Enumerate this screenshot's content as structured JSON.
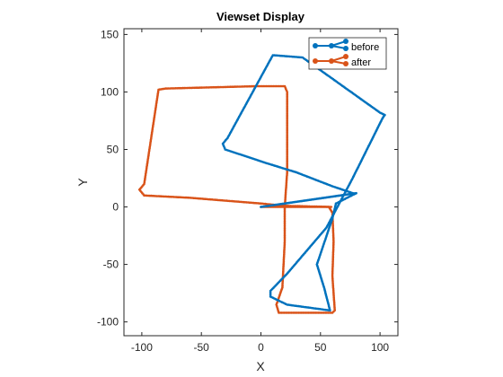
{
  "chart_data": {
    "type": "line",
    "title": "Viewset Display",
    "xlabel": "X",
    "ylabel": "Y",
    "xlim": [
      -115,
      115
    ],
    "ylim": [
      -112,
      155
    ],
    "xticks": [
      -100,
      -50,
      0,
      50,
      100
    ],
    "yticks": [
      -100,
      -50,
      0,
      50,
      100,
      150
    ],
    "grid": false,
    "legend_position": "top-right",
    "colors": {
      "before": "#0072BD",
      "after": "#D95319",
      "link": "#7FB2DE"
    },
    "series": [
      {
        "name": "before",
        "x": [
          0,
          60,
          80,
          63,
          60,
          47,
          53,
          58,
          22,
          8,
          8,
          22,
          55,
          77,
          102,
          104,
          100,
          35,
          10,
          -28,
          -32,
          -30,
          5,
          30,
          60,
          80
        ],
        "y": [
          0,
          9,
          12,
          3,
          -10,
          -50,
          -70,
          -90,
          -85,
          -78,
          -73,
          -58,
          -18,
          25,
          77,
          80,
          82,
          130,
          132,
          60,
          55,
          50,
          38,
          30,
          18,
          11
        ]
      },
      {
        "name": "after",
        "x": [
          0,
          25,
          57,
          60,
          61,
          60,
          62,
          60,
          40,
          15,
          13,
          18,
          20,
          20,
          22,
          22,
          20,
          -5,
          -80,
          -86,
          -98,
          -102,
          -98,
          -60,
          0,
          20,
          60
        ],
        "y": [
          0,
          0,
          0,
          -5,
          -30,
          -60,
          -90,
          -92,
          -92,
          -92,
          -85,
          -70,
          -30,
          0,
          30,
          100,
          105,
          105,
          103,
          102,
          20,
          15,
          10,
          8,
          3,
          1,
          0
        ]
      },
      {
        "name": "",
        "x": [
          0,
          80
        ],
        "y": [
          0,
          12
        ]
      }
    ]
  }
}
